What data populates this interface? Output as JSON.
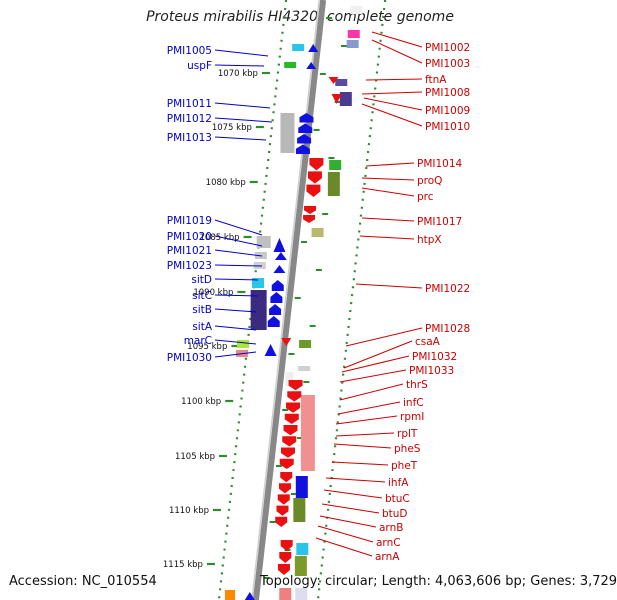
{
  "title": "Proteus mirabilis HI4320, complete genome",
  "footer": {
    "accession": "Accession: NC_010554",
    "topology": "Topology: circular; Length: 4,063,606 bp; Genes: 3,729"
  },
  "colors": {
    "reverse_labels": "#0000cc",
    "forward_labels": "#cc0000",
    "reverse_arrows": "#1010e0",
    "forward_arrows": "#e81010",
    "axis": "#888888",
    "dots": "#2e8b2e"
  },
  "kbp_labels": [
    "1070 kbp",
    "1075 kbp",
    "1080 kbp",
    "1085 kbp",
    "1090 kbp",
    "1095 kbp",
    "1100 kbp",
    "1105 kbp",
    "1110 kbp",
    "1115 kbp"
  ],
  "left_genes": [
    "PMI1005",
    "uspF",
    "PMI1011",
    "PMI1012",
    "PMI1013",
    "PMI1019",
    "PMI1020",
    "PMI1021",
    "PMI1023",
    "sitD",
    "sitC",
    "sitB",
    "sitA",
    "marC",
    "PMI1030"
  ],
  "right_genes": [
    "PMI1002",
    "PMI1003",
    "ftnA",
    "PMI1008",
    "PMI1009",
    "PMI1010",
    "PMI1014",
    "proQ",
    "prc",
    "PMI1017",
    "htpX",
    "PMI1022",
    "PMI1028",
    "csaA",
    "PMI1032",
    "PMI1033",
    "thrS",
    "infC",
    "rpmI",
    "rplT",
    "pheS",
    "pheT",
    "ihfA",
    "btuC",
    "btuD",
    "arnB",
    "arnC",
    "arnA"
  ]
}
